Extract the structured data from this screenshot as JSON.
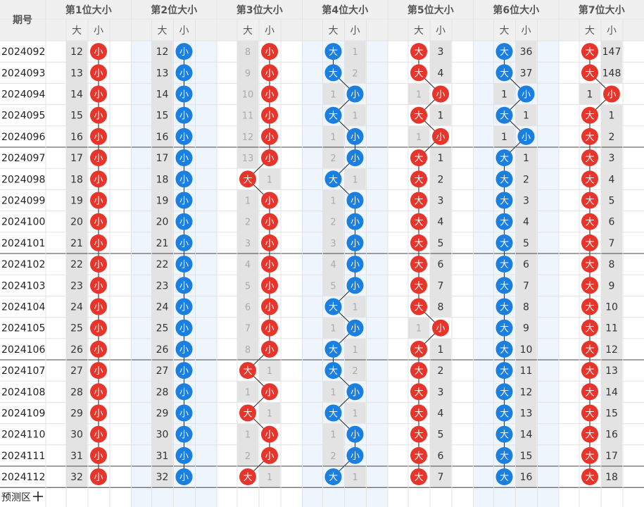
{
  "header": {
    "period_label": "期号",
    "big_label": "大",
    "small_label": "小",
    "positions": [
      "第1位大小",
      "第2位大小",
      "第3位大小",
      "第4位大小",
      "第5位大小",
      "第6位大小",
      "第7位大小"
    ]
  },
  "forecast": {
    "label": "预测区",
    "icon": "plus-icon"
  },
  "colors": {
    "red": "#e8352b",
    "blue": "#1a7fe0",
    "col_tint": "#eef5fd",
    "miss_bg": "#e3e3e3"
  },
  "periods": [
    "2024092",
    "2024093",
    "2024094",
    "2024095",
    "2024096",
    "2024097",
    "2024098",
    "2024099",
    "2024100",
    "2024101",
    "2024102",
    "2024103",
    "2024104",
    "2024105",
    "2024106",
    "2024107",
    "2024108",
    "2024109",
    "2024110",
    "2024111",
    "2024112"
  ],
  "positions_data": [
    {
      "color": "red",
      "marks": [
        "小",
        "小",
        "小",
        "小",
        "小",
        "小",
        "小",
        "小",
        "小",
        "小",
        "小",
        "小",
        "小",
        "小",
        "小",
        "小",
        "小",
        "小",
        "小",
        "小",
        "小"
      ],
      "omit": [
        "12",
        "13",
        "14",
        "15",
        "16",
        "17",
        "18",
        "19",
        "20",
        "21",
        "22",
        "23",
        "24",
        "25",
        "26",
        "27",
        "28",
        "29",
        "30",
        "31",
        "32"
      ]
    },
    {
      "color": "blue",
      "marks": [
        "小",
        "小",
        "小",
        "小",
        "小",
        "小",
        "小",
        "小",
        "小",
        "小",
        "小",
        "小",
        "小",
        "小",
        "小",
        "小",
        "小",
        "小",
        "小",
        "小",
        "小"
      ],
      "omit": [
        "12",
        "13",
        "14",
        "15",
        "16",
        "17",
        "18",
        "19",
        "20",
        "21",
        "22",
        "23",
        "24",
        "25",
        "26",
        "27",
        "28",
        "29",
        "30",
        "31",
        "32"
      ]
    },
    {
      "color": "red",
      "marks": [
        "小",
        "小",
        "小",
        "小",
        "小",
        "小",
        "大",
        "小",
        "小",
        "小",
        "小",
        "小",
        "小",
        "小",
        "小",
        "大",
        "小",
        "大",
        "小",
        "小",
        "大"
      ],
      "omit": [
        "8",
        "9",
        "10",
        "11",
        "12",
        "13",
        "1",
        "1",
        "2",
        "3",
        "4",
        "5",
        "6",
        "7",
        "8",
        "1",
        "1",
        "1",
        "1",
        "2",
        "1"
      ]
    },
    {
      "color": "blue",
      "marks": [
        "大",
        "大",
        "小",
        "大",
        "小",
        "小",
        "大",
        "小",
        "小",
        "小",
        "小",
        "小",
        "大",
        "小",
        "大",
        "大",
        "小",
        "大",
        "小",
        "小",
        "大"
      ],
      "omit": [
        "1",
        "2",
        "1",
        "1",
        "1",
        "2",
        "1",
        "1",
        "2",
        "3",
        "4",
        "5",
        "1",
        "1",
        "1",
        "2",
        "1",
        "1",
        "1",
        "2",
        "1"
      ]
    },
    {
      "color": "red",
      "marks": [
        "大",
        "大",
        "小",
        "大",
        "小",
        "大",
        "大",
        "大",
        "大",
        "大",
        "大",
        "大",
        "大",
        "小",
        "大",
        "大",
        "大",
        "大",
        "大",
        "大",
        "大"
      ],
      "omit": [
        "3",
        "4",
        "1",
        "1",
        "1",
        "1",
        "2",
        "3",
        "4",
        "5",
        "6",
        "7",
        "8",
        "1",
        "1",
        "2",
        "3",
        "4",
        "5",
        "6",
        "7"
      ]
    },
    {
      "color": "blue",
      "marks": [
        "大",
        "大",
        "小",
        "大",
        "小",
        "大",
        "大",
        "大",
        "大",
        "大",
        "大",
        "大",
        "大",
        "大",
        "大",
        "大",
        "大",
        "大",
        "大",
        "大",
        "大"
      ],
      "omit": [
        "36",
        "37",
        "1",
        "1",
        "1",
        "1",
        "2",
        "3",
        "4",
        "5",
        "6",
        "7",
        "8",
        "9",
        "10",
        "11",
        "12",
        "13",
        "14",
        "15",
        "16"
      ]
    },
    {
      "color": "red",
      "marks": [
        "大",
        "大",
        "小",
        "大",
        "大",
        "大",
        "大",
        "大",
        "大",
        "大",
        "大",
        "大",
        "大",
        "大",
        "大",
        "大",
        "大",
        "大",
        "大",
        "大",
        "大"
      ],
      "omit": [
        "147",
        "148",
        "1",
        "1",
        "2",
        "3",
        "4",
        "5",
        "6",
        "7",
        "8",
        "9",
        "10",
        "11",
        "12",
        "13",
        "14",
        "15",
        "16",
        "17",
        "18"
      ]
    }
  ]
}
